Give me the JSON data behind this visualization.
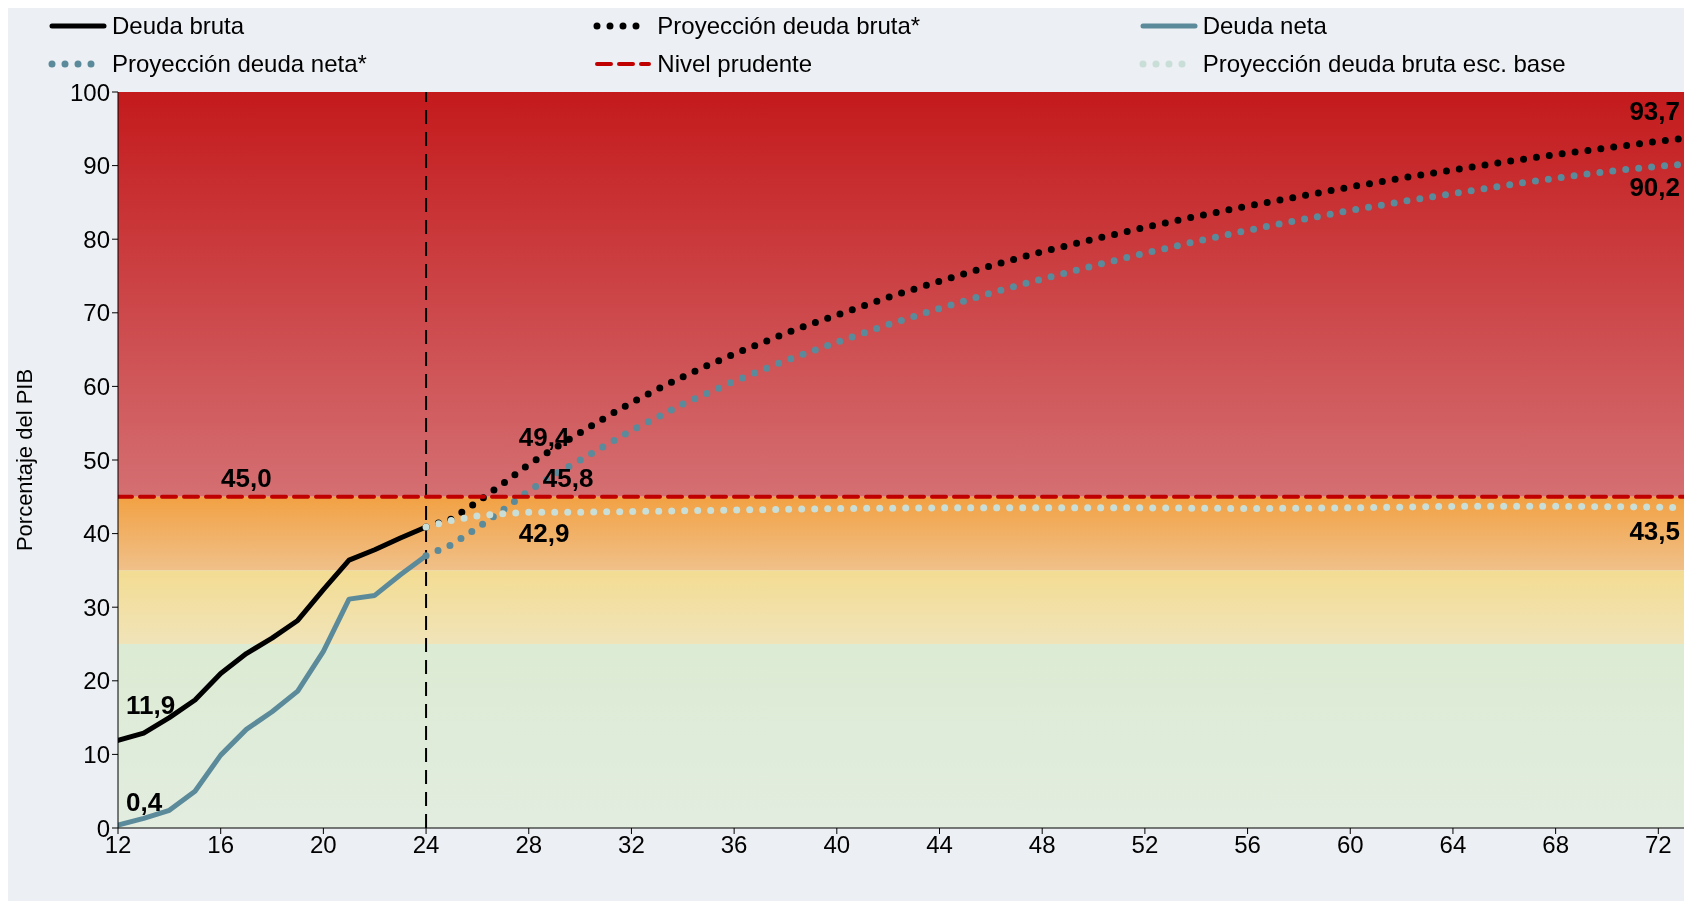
{
  "chart_data": {
    "type": "line",
    "ylabel": "Porcentaje del PIB",
    "xlim": [
      12,
      73
    ],
    "xticks": [
      12,
      16,
      20,
      24,
      28,
      32,
      36,
      40,
      44,
      48,
      52,
      56,
      60,
      64,
      68,
      72
    ],
    "ylim": [
      0,
      100
    ],
    "yticks": [
      0,
      10,
      20,
      30,
      40,
      50,
      60,
      70,
      80,
      90,
      100
    ],
    "grid": false,
    "legend": "top",
    "marker": "none",
    "series": [
      {
        "name": "Deuda bruta",
        "color": "#000000",
        "line_style": "solid",
        "x": [
          12,
          13,
          14,
          15,
          16,
          17,
          18,
          19,
          20,
          21,
          22,
          23,
          24
        ],
        "values": [
          11.9,
          12.9,
          15.0,
          17.4,
          21.0,
          23.7,
          25.8,
          28.2,
          32.4,
          36.4,
          37.8,
          39.4,
          40.9
        ],
        "value_labels": [
          "11,9",
          null,
          null,
          null,
          null,
          null,
          null,
          null,
          null,
          null,
          null,
          null,
          null
        ]
      },
      {
        "name": "Proyección deuda bruta*",
        "color": "#000000",
        "line_style": "dotted",
        "x": [
          24,
          25,
          26,
          27,
          28,
          29,
          30,
          31,
          32,
          33,
          34,
          35,
          36,
          37,
          38,
          39,
          40,
          42,
          44,
          46,
          48,
          50,
          52,
          54,
          56,
          58,
          60,
          62,
          64,
          66,
          68,
          70,
          72,
          73
        ],
        "values": [
          40.9,
          42.0,
          44.3,
          46.8,
          49.4,
          51.6,
          53.7,
          55.8,
          57.8,
          59.6,
          61.3,
          62.9,
          64.4,
          65.8,
          67.2,
          68.5,
          69.7,
          72.1,
          74.3,
          76.4,
          78.3,
          80.0,
          81.6,
          83.1,
          84.5,
          85.8,
          87.1,
          88.3,
          89.4,
          90.5,
          91.5,
          92.4,
          93.3,
          93.7
        ],
        "value_labels": [
          null,
          null,
          null,
          null,
          "49,4",
          null,
          null,
          null,
          null,
          null,
          null,
          null,
          null,
          null,
          null,
          null,
          null,
          null,
          null,
          null,
          null,
          null,
          null,
          null,
          null,
          null,
          null,
          null,
          null,
          null,
          null,
          null,
          null,
          "93,7"
        ]
      },
      {
        "name": "Deuda neta",
        "color": "#5b8a9a",
        "line_style": "solid",
        "x": [
          12,
          13,
          14,
          15,
          16,
          17,
          18,
          19,
          20,
          21,
          22,
          23,
          24
        ],
        "values": [
          0.4,
          1.3,
          2.4,
          5.0,
          9.9,
          13.4,
          15.8,
          18.6,
          24.0,
          31.1,
          31.6,
          34.4,
          37.0
        ],
        "value_labels": [
          "0,4",
          null,
          null,
          null,
          null,
          null,
          null,
          null,
          null,
          null,
          null,
          null,
          null
        ]
      },
      {
        "name": "Proyección deuda neta*",
        "color": "#5b8a9a",
        "line_style": "dotted",
        "x": [
          24,
          25,
          26,
          27,
          28,
          29,
          30,
          32,
          34,
          36,
          38,
          40,
          42,
          44,
          46,
          48,
          50,
          52,
          54,
          56,
          58,
          60,
          62,
          64,
          66,
          68,
          70,
          72,
          73
        ],
        "values": [
          37.0,
          38.5,
          40.8,
          43.2,
          45.8,
          48.0,
          50.0,
          54.0,
          57.6,
          60.7,
          63.5,
          66.0,
          68.4,
          70.6,
          72.7,
          74.6,
          76.4,
          78.1,
          79.7,
          81.2,
          82.6,
          83.9,
          85.1,
          86.2,
          87.3,
          88.3,
          89.2,
          89.9,
          90.2
        ],
        "value_labels": [
          null,
          null,
          null,
          null,
          "45,8",
          null,
          null,
          null,
          null,
          null,
          null,
          null,
          null,
          null,
          null,
          null,
          null,
          null,
          null,
          null,
          null,
          null,
          null,
          null,
          null,
          null,
          null,
          null,
          "90,2"
        ]
      },
      {
        "name": "Nivel prudente",
        "color": "#c00000",
        "line_style": "dashed",
        "x": [
          12,
          73
        ],
        "values": [
          45,
          45
        ],
        "value_labels": [
          null,
          null
        ]
      },
      {
        "name": "Proyección deuda bruta esc. base",
        "color": "#c9ded6",
        "line_style": "dotted",
        "x": [
          24,
          25,
          26,
          27,
          28,
          30,
          32,
          36,
          40,
          44,
          48,
          52,
          56,
          60,
          64,
          68,
          72,
          73
        ],
        "values": [
          40.9,
          41.8,
          42.4,
          42.7,
          42.9,
          42.9,
          43.0,
          43.2,
          43.4,
          43.5,
          43.5,
          43.5,
          43.4,
          43.5,
          43.7,
          43.7,
          43.6,
          43.5
        ],
        "value_labels": [
          null,
          null,
          null,
          null,
          "42,9",
          null,
          null,
          null,
          null,
          null,
          null,
          null,
          null,
          null,
          null,
          null,
          null,
          "43,5"
        ]
      }
    ],
    "ref_lines": [
      {
        "axis": "x",
        "value": 24,
        "color": "#000000",
        "line_style": "dashed"
      }
    ],
    "bands": [
      {
        "axis": "y",
        "from": 45,
        "to": 100,
        "color": "#c41a1c"
      },
      {
        "axis": "y",
        "from": 35,
        "to": 45,
        "color": "#f2a143"
      },
      {
        "axis": "y",
        "from": 25,
        "to": 35,
        "color": "#f3dc92"
      },
      {
        "axis": "y",
        "from": 0,
        "to": 25,
        "color": "#dcebd3"
      }
    ],
    "annotations": [
      {
        "text": "45,0",
        "x": 17,
        "y": 45
      }
    ]
  }
}
